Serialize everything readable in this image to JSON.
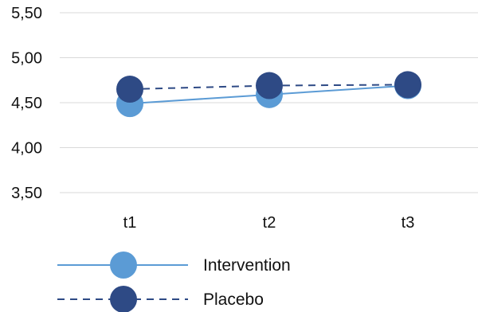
{
  "chart_data": {
    "type": "line",
    "categories": [
      "t1",
      "t2",
      "t3"
    ],
    "ylim": [
      3.5,
      5.5
    ],
    "yticks": [
      "5,50",
      "5,00",
      "4,50",
      "4,00",
      "3,50"
    ],
    "ytick_values": [
      5.5,
      5.0,
      4.5,
      4.0,
      3.5
    ],
    "grid": "horizontal",
    "legend_position": "bottom",
    "series": [
      {
        "name": "Intervention",
        "values": [
          4.49,
          4.59,
          4.69
        ],
        "color": "#5b9bd5",
        "line_style": "solid"
      },
      {
        "name": "Placebo",
        "values": [
          4.65,
          4.69,
          4.7
        ],
        "color": "#2e4a85",
        "line_style": "dashed"
      }
    ]
  }
}
